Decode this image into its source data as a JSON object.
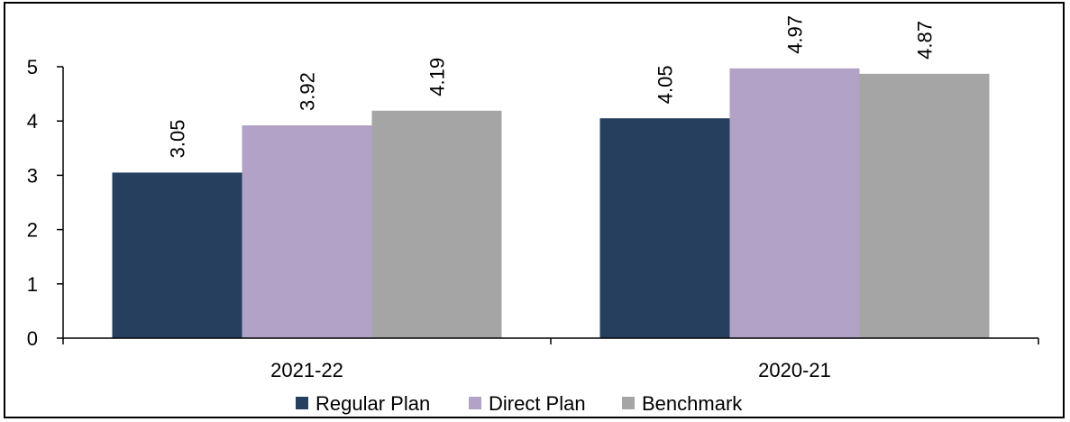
{
  "chart_data": {
    "type": "bar",
    "title": "",
    "xlabel": "",
    "ylabel": "",
    "categories": [
      "2021-22",
      "2020-21"
    ],
    "series": [
      {
        "name": "Regular Plan",
        "values": [
          3.05,
          4.05
        ],
        "color": "#263f5f"
      },
      {
        "name": "Direct Plan",
        "values": [
          3.92,
          4.97
        ],
        "color": "#b2a2c7"
      },
      {
        "name": "Benchmark",
        "values": [
          4.19,
          4.87
        ],
        "color": "#a5a5a5"
      }
    ],
    "ylim": [
      0,
      5
    ],
    "yticks": [
      "0",
      "1",
      "2",
      "3",
      "4",
      "5"
    ],
    "data_labels": [
      "3.05",
      "4.05",
      "3.92",
      "4.97",
      "4.19",
      "4.87"
    ],
    "grid": false,
    "legend_position": "bottom"
  }
}
